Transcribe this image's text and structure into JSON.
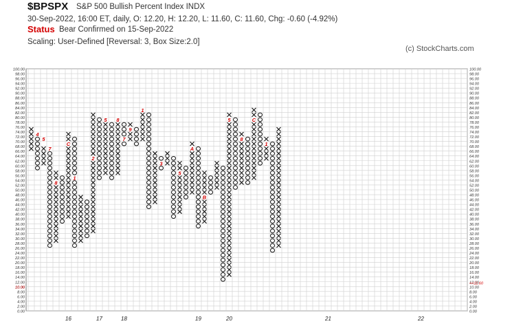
{
  "header": {
    "ticker": "$BPSPX",
    "name": "S&P 500 Bullish Percent Index  INDX",
    "quote": "30-Sep-2022, 16:00 ET, daily, O: 12.20, H: 12.20, L: 11.60, C: 11.60, Chg: -0.60 (-4.92%)",
    "status_label": "Status",
    "status_text": "Bear Confirmed on 15-Sep-2022",
    "scaling": "Scaling: User-Defined [Reversal: 3, Box Size:2.0]",
    "credit": "(c) StockCharts.com"
  },
  "chart_data": {
    "type": "point-and-figure",
    "box_size": 2,
    "reversal": 3,
    "ylim": [
      0,
      100
    ],
    "y_ticks": [
      0,
      2,
      4,
      6,
      8,
      10,
      12,
      14,
      16,
      18,
      20,
      22,
      24,
      26,
      28,
      30,
      32,
      34,
      36,
      38,
      40,
      42,
      44,
      46,
      48,
      50,
      52,
      54,
      56,
      58,
      60,
      62,
      64,
      66,
      68,
      70,
      72,
      74,
      76,
      78,
      80,
      82,
      84,
      86,
      88,
      90,
      92,
      94,
      96,
      98,
      100
    ],
    "last_value_label": "11.60",
    "prev_value_label": "10.00",
    "x_axis_labels": [
      {
        "label": "16",
        "col": 6
      },
      {
        "label": "17",
        "col": 11
      },
      {
        "label": "18",
        "col": 15
      },
      {
        "label": "19",
        "col": 27
      },
      {
        "label": "20",
        "col": 32
      },
      {
        "label": "21",
        "col": 48
      },
      {
        "label": "22",
        "col": 63
      }
    ],
    "columns": [
      {
        "t": "X",
        "lo": 66,
        "hi": 74
      },
      {
        "t": "O",
        "lo": 58,
        "hi": 72
      },
      {
        "t": "X",
        "lo": 60,
        "hi": 66
      },
      {
        "t": "O",
        "lo": 26,
        "hi": 64
      },
      {
        "t": "X",
        "lo": 28,
        "hi": 56
      },
      {
        "t": "O",
        "lo": 36,
        "hi": 54
      },
      {
        "t": "X",
        "lo": 38,
        "hi": 72
      },
      {
        "t": "O",
        "lo": 26,
        "hi": 70
      },
      {
        "t": "X",
        "lo": 28,
        "hi": 46
      },
      {
        "t": "O",
        "lo": 30,
        "hi": 44
      },
      {
        "t": "X",
        "lo": 32,
        "hi": 80
      },
      {
        "t": "O",
        "lo": 54,
        "hi": 78
      },
      {
        "t": "X",
        "lo": 56,
        "hi": 78
      },
      {
        "t": "O",
        "lo": 54,
        "hi": 76
      },
      {
        "t": "X",
        "lo": 56,
        "hi": 78
      },
      {
        "t": "O",
        "lo": 68,
        "hi": 76
      },
      {
        "t": "X",
        "lo": 70,
        "hi": 76
      },
      {
        "t": "O",
        "lo": 68,
        "hi": 74
      },
      {
        "t": "X",
        "lo": 70,
        "hi": 82
      },
      {
        "t": "O",
        "lo": 42,
        "hi": 80
      },
      {
        "t": "X",
        "lo": 44,
        "hi": 64
      },
      {
        "t": "O",
        "lo": 58,
        "hi": 62
      },
      {
        "t": "X",
        "lo": 60,
        "hi": 64
      },
      {
        "t": "O",
        "lo": 38,
        "hi": 62
      },
      {
        "t": "X",
        "lo": 40,
        "hi": 60
      },
      {
        "t": "O",
        "lo": 46,
        "hi": 58
      },
      {
        "t": "X",
        "lo": 48,
        "hi": 68
      },
      {
        "t": "O",
        "lo": 34,
        "hi": 66
      },
      {
        "t": "X",
        "lo": 36,
        "hi": 56
      },
      {
        "t": "O",
        "lo": 48,
        "hi": 54
      },
      {
        "t": "X",
        "lo": 50,
        "hi": 60
      },
      {
        "t": "O",
        "lo": 12,
        "hi": 58
      },
      {
        "t": "X",
        "lo": 14,
        "hi": 80
      },
      {
        "t": "O",
        "lo": 50,
        "hi": 78
      },
      {
        "t": "X",
        "lo": 52,
        "hi": 72
      },
      {
        "t": "O",
        "lo": 52,
        "hi": 70
      },
      {
        "t": "X",
        "lo": 54,
        "hi": 82
      },
      {
        "t": "O",
        "lo": 60,
        "hi": 80
      },
      {
        "t": "X",
        "lo": 62,
        "hi": 70
      },
      {
        "t": "O",
        "lo": 24,
        "hi": 68
      },
      {
        "t": "X",
        "lo": 26,
        "hi": 74
      }
    ],
    "month_marks": [
      {
        "col": 1,
        "v": 72,
        "label": "4"
      },
      {
        "col": 2,
        "v": 70,
        "label": "5"
      },
      {
        "col": 3,
        "v": 66,
        "label": "7"
      },
      {
        "col": 4,
        "v": 52,
        "label": "8"
      },
      {
        "col": 6,
        "v": 68,
        "label": "C"
      },
      {
        "col": 7,
        "v": 54,
        "label": "1"
      },
      {
        "col": 10,
        "v": 62,
        "label": "2"
      },
      {
        "col": 12,
        "v": 78,
        "label": "5"
      },
      {
        "col": 14,
        "v": 78,
        "label": "8"
      },
      {
        "col": 15,
        "v": 70,
        "label": "7"
      },
      {
        "col": 16,
        "v": 74,
        "label": "9"
      },
      {
        "col": 18,
        "v": 82,
        "label": "1"
      },
      {
        "col": 21,
        "v": 60,
        "label": "3"
      },
      {
        "col": 24,
        "v": 56,
        "label": "5"
      },
      {
        "col": 26,
        "v": 66,
        "label": "A"
      },
      {
        "col": 28,
        "v": 46,
        "label": "B"
      },
      {
        "col": 32,
        "v": 78,
        "label": "5"
      },
      {
        "col": 34,
        "v": 70,
        "label": "8"
      },
      {
        "col": 36,
        "v": 78,
        "label": "C"
      },
      {
        "col": 38,
        "v": 68,
        "label": "1"
      }
    ]
  }
}
